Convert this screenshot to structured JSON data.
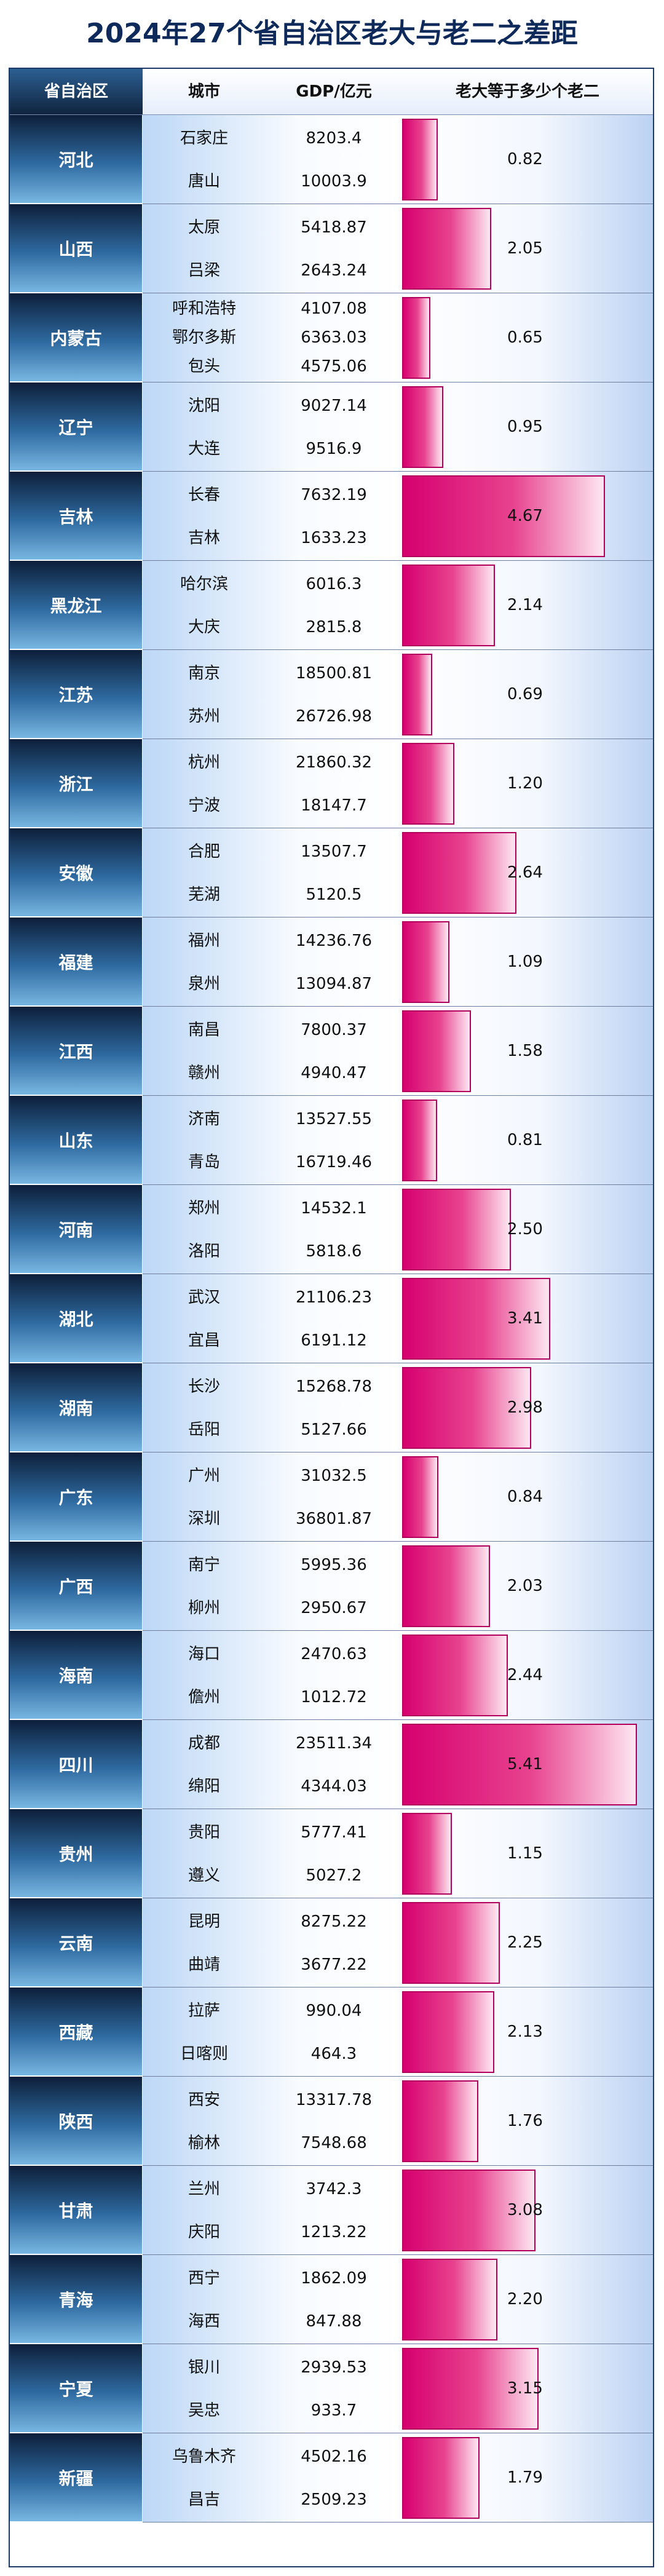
{
  "title": "2024年27个省自治区老大与老二之差距",
  "chart_data": {
    "type": "table",
    "title": "2024年27个省自治区老大与老二之差距",
    "columns": [
      "省自治区",
      "城市",
      "GDP/亿元",
      "老大等于多少个老二"
    ],
    "ratio_max": 5.41,
    "rows": [
      {
        "province": "河北",
        "cities": [
          {
            "name": "石家庄",
            "gdp": "8203.4"
          },
          {
            "name": "唐山",
            "gdp": "10003.9"
          }
        ],
        "ratio": 0.82,
        "ratio_label": "0.82"
      },
      {
        "province": "山西",
        "cities": [
          {
            "name": "太原",
            "gdp": "5418.87"
          },
          {
            "name": "吕梁",
            "gdp": "2643.24"
          }
        ],
        "ratio": 2.05,
        "ratio_label": "2.05"
      },
      {
        "province": "内蒙古",
        "cities": [
          {
            "name": "呼和浩特",
            "gdp": "4107.08"
          },
          {
            "name": "鄂尔多斯",
            "gdp": "6363.03"
          },
          {
            "name": "包头",
            "gdp": "4575.06"
          }
        ],
        "ratio": 0.65,
        "ratio_label": "0.65"
      },
      {
        "province": "辽宁",
        "cities": [
          {
            "name": "沈阳",
            "gdp": "9027.14"
          },
          {
            "name": "大连",
            "gdp": "9516.9"
          }
        ],
        "ratio": 0.95,
        "ratio_label": "0.95"
      },
      {
        "province": "吉林",
        "cities": [
          {
            "name": "长春",
            "gdp": "7632.19"
          },
          {
            "name": "吉林",
            "gdp": "1633.23"
          }
        ],
        "ratio": 4.67,
        "ratio_label": "4.67"
      },
      {
        "province": "黑龙江",
        "cities": [
          {
            "name": "哈尔滨",
            "gdp": "6016.3"
          },
          {
            "name": "大庆",
            "gdp": "2815.8"
          }
        ],
        "ratio": 2.14,
        "ratio_label": "2.14"
      },
      {
        "province": "江苏",
        "cities": [
          {
            "name": "南京",
            "gdp": "18500.81"
          },
          {
            "name": "苏州",
            "gdp": "26726.98"
          }
        ],
        "ratio": 0.69,
        "ratio_label": "0.69"
      },
      {
        "province": "浙江",
        "cities": [
          {
            "name": "杭州",
            "gdp": "21860.32"
          },
          {
            "name": "宁波",
            "gdp": "18147.7"
          }
        ],
        "ratio": 1.2,
        "ratio_label": "1.20"
      },
      {
        "province": "安徽",
        "cities": [
          {
            "name": "合肥",
            "gdp": "13507.7"
          },
          {
            "name": "芜湖",
            "gdp": "5120.5"
          }
        ],
        "ratio": 2.64,
        "ratio_label": "2.64"
      },
      {
        "province": "福建",
        "cities": [
          {
            "name": "福州",
            "gdp": "14236.76"
          },
          {
            "name": "泉州",
            "gdp": "13094.87"
          }
        ],
        "ratio": 1.09,
        "ratio_label": "1.09"
      },
      {
        "province": "江西",
        "cities": [
          {
            "name": "南昌",
            "gdp": "7800.37"
          },
          {
            "name": "赣州",
            "gdp": "4940.47"
          }
        ],
        "ratio": 1.58,
        "ratio_label": "1.58"
      },
      {
        "province": "山东",
        "cities": [
          {
            "name": "济南",
            "gdp": "13527.55"
          },
          {
            "name": "青岛",
            "gdp": "16719.46"
          }
        ],
        "ratio": 0.81,
        "ratio_label": "0.81"
      },
      {
        "province": "河南",
        "cities": [
          {
            "name": "郑州",
            "gdp": "14532.1"
          },
          {
            "name": "洛阳",
            "gdp": "5818.6"
          }
        ],
        "ratio": 2.5,
        "ratio_label": "2.50"
      },
      {
        "province": "湖北",
        "cities": [
          {
            "name": "武汉",
            "gdp": "21106.23"
          },
          {
            "name": "宜昌",
            "gdp": "6191.12"
          }
        ],
        "ratio": 3.41,
        "ratio_label": "3.41"
      },
      {
        "province": "湖南",
        "cities": [
          {
            "name": "长沙",
            "gdp": "15268.78"
          },
          {
            "name": "岳阳",
            "gdp": "5127.66"
          }
        ],
        "ratio": 2.98,
        "ratio_label": "2.98"
      },
      {
        "province": "广东",
        "cities": [
          {
            "name": "广州",
            "gdp": "31032.5"
          },
          {
            "name": "深圳",
            "gdp": "36801.87"
          }
        ],
        "ratio": 0.84,
        "ratio_label": "0.84"
      },
      {
        "province": "广西",
        "cities": [
          {
            "name": "南宁",
            "gdp": "5995.36"
          },
          {
            "name": "柳州",
            "gdp": "2950.67"
          }
        ],
        "ratio": 2.03,
        "ratio_label": "2.03"
      },
      {
        "province": "海南",
        "cities": [
          {
            "name": "海口",
            "gdp": "2470.63"
          },
          {
            "name": "儋州",
            "gdp": "1012.72"
          }
        ],
        "ratio": 2.44,
        "ratio_label": "2.44"
      },
      {
        "province": "四川",
        "cities": [
          {
            "name": "成都",
            "gdp": "23511.34"
          },
          {
            "name": "绵阳",
            "gdp": "4344.03"
          }
        ],
        "ratio": 5.41,
        "ratio_label": "5.41"
      },
      {
        "province": "贵州",
        "cities": [
          {
            "name": "贵阳",
            "gdp": "5777.41"
          },
          {
            "name": "遵义",
            "gdp": "5027.2"
          }
        ],
        "ratio": 1.15,
        "ratio_label": "1.15"
      },
      {
        "province": "云南",
        "cities": [
          {
            "name": "昆明",
            "gdp": "8275.22"
          },
          {
            "name": "曲靖",
            "gdp": "3677.22"
          }
        ],
        "ratio": 2.25,
        "ratio_label": "2.25"
      },
      {
        "province": "西藏",
        "cities": [
          {
            "name": "拉萨",
            "gdp": "990.04"
          },
          {
            "name": "日喀则",
            "gdp": "464.3"
          }
        ],
        "ratio": 2.13,
        "ratio_label": "2.13"
      },
      {
        "province": "陕西",
        "cities": [
          {
            "name": "西安",
            "gdp": "13317.78"
          },
          {
            "name": "榆林",
            "gdp": "7548.68"
          }
        ],
        "ratio": 1.76,
        "ratio_label": "1.76"
      },
      {
        "province": "甘肃",
        "cities": [
          {
            "name": "兰州",
            "gdp": "3742.3"
          },
          {
            "name": "庆阳",
            "gdp": "1213.22"
          }
        ],
        "ratio": 3.08,
        "ratio_label": "3.08"
      },
      {
        "province": "青海",
        "cities": [
          {
            "name": "西宁",
            "gdp": "1862.09"
          },
          {
            "name": "海西",
            "gdp": "847.88"
          }
        ],
        "ratio": 2.2,
        "ratio_label": "2.20"
      },
      {
        "province": "宁夏",
        "cities": [
          {
            "name": "银川",
            "gdp": "2939.53"
          },
          {
            "name": "吴忠",
            "gdp": "933.7"
          }
        ],
        "ratio": 3.15,
        "ratio_label": "3.15"
      },
      {
        "province": "新疆",
        "cities": [
          {
            "name": "乌鲁木齐",
            "gdp": "4502.16"
          },
          {
            "name": "昌吉",
            "gdp": "2509.23"
          }
        ],
        "ratio": 1.79,
        "ratio_label": "1.79"
      }
    ]
  }
}
